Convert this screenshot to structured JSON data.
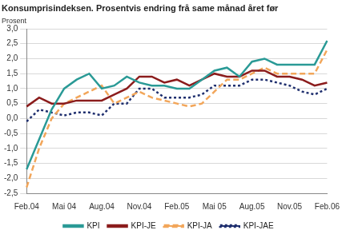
{
  "chart_data": {
    "type": "line",
    "title": "Konsumprisindeksen. Prosentvis endring frå same månad året før",
    "y_label": "Prosent",
    "categories": [
      "Feb.04",
      null,
      null,
      "Mai 04",
      null,
      null,
      "Aug.04",
      null,
      null,
      "Nov.04",
      null,
      null,
      "Feb.05",
      null,
      null,
      "Mai 05",
      null,
      null,
      "Aug.05",
      null,
      null,
      "Nov.05",
      null,
      null,
      "Feb.06"
    ],
    "series": [
      {
        "name": "KPI",
        "color": "#2a9a96",
        "line_style": "solid",
        "values": [
          -1.7,
          -0.7,
          0.3,
          1.0,
          1.3,
          1.5,
          1.0,
          1.1,
          1.4,
          1.2,
          1.1,
          1.1,
          1.0,
          1.0,
          1.3,
          1.6,
          1.7,
          1.4,
          1.9,
          2.0,
          1.8,
          1.8,
          1.8,
          1.8,
          2.6
        ]
      },
      {
        "name": "KPI-JE",
        "color": "#8b1c1c",
        "line_style": "solid",
        "values": [
          0.4,
          0.7,
          0.5,
          0.5,
          0.6,
          0.6,
          0.6,
          0.8,
          1.0,
          1.4,
          1.4,
          1.2,
          1.3,
          1.1,
          1.3,
          1.5,
          1.4,
          1.4,
          1.6,
          1.6,
          1.4,
          1.4,
          1.3,
          1.1,
          1.2
        ]
      },
      {
        "name": "KPI-JA",
        "color": "#f2a65a",
        "line_style": "dashed",
        "values": [
          -2.3,
          -1.0,
          0.0,
          0.5,
          0.7,
          0.9,
          1.1,
          0.5,
          0.7,
          0.9,
          0.7,
          0.6,
          0.5,
          0.4,
          0.5,
          0.9,
          1.3,
          1.3,
          1.5,
          1.7,
          1.5,
          1.5,
          1.5,
          1.5,
          2.3
        ]
      },
      {
        "name": "KPI-JAE",
        "color": "#1f2f6e",
        "line_style": "dotted",
        "values": [
          -0.1,
          0.3,
          0.2,
          0.1,
          0.2,
          0.2,
          0.1,
          0.5,
          0.5,
          1.0,
          1.0,
          0.7,
          0.7,
          0.7,
          0.8,
          1.1,
          1.1,
          1.1,
          1.3,
          1.3,
          1.2,
          1.1,
          0.9,
          0.8,
          1.0
        ]
      }
    ],
    "ylim": [
      -2.5,
      3.0
    ],
    "yticks": [
      {
        "value": -2.5,
        "label": "-2,5"
      },
      {
        "value": -2.0,
        "label": "-2,0"
      },
      {
        "value": -1.5,
        "label": "-1,5"
      },
      {
        "value": -1.0,
        "label": "-1,0"
      },
      {
        "value": -0.5,
        "label": "-0,5"
      },
      {
        "value": 0,
        "label": "0,0"
      },
      {
        "value": 0.5,
        "label": "0,5"
      },
      {
        "value": 1.0,
        "label": "1,0"
      },
      {
        "value": 1.5,
        "label": "1,5"
      },
      {
        "value": 2.0,
        "label": "2,0"
      },
      {
        "value": 2.5,
        "label": "2,5"
      },
      {
        "value": 3.0,
        "label": "3,0"
      }
    ],
    "grid": true,
    "legend": "bottom"
  }
}
